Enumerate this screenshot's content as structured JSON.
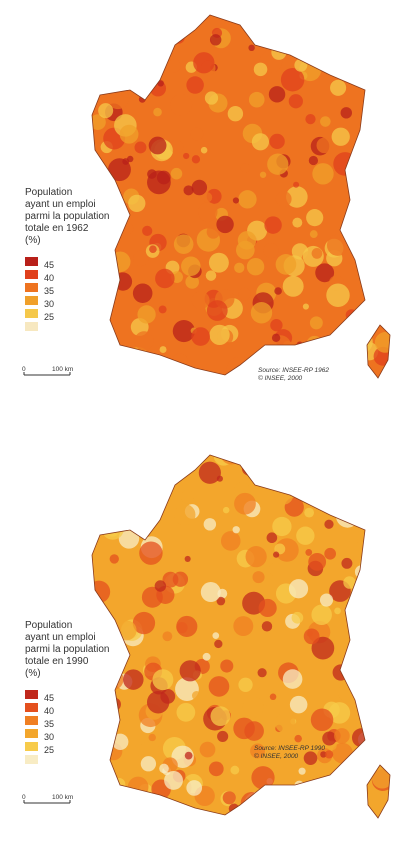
{
  "maps": [
    {
      "legend": {
        "title_lines": [
          "Population",
          "ayant un emploi",
          "parmi la population",
          "totale en 1962",
          "(%)"
        ],
        "labels": [
          "45",
          "40",
          "35",
          "30",
          "25"
        ]
      },
      "scale": {
        "start": "0",
        "end": "100 km"
      },
      "source": [
        "Source: INSEE-RP 1962",
        "© INSEE, 2000"
      ]
    },
    {
      "legend": {
        "title_lines": [
          "Population",
          "ayant un emploi",
          "parmi la population",
          "totale en 1990",
          "(%)"
        ],
        "labels": [
          "45",
          "40",
          "35",
          "30",
          "25"
        ]
      },
      "scale": {
        "start": "0",
        "end": "100 km"
      },
      "source": [
        "Source: INSEE-RP 1990",
        "© INSEE, 2000"
      ]
    }
  ]
}
